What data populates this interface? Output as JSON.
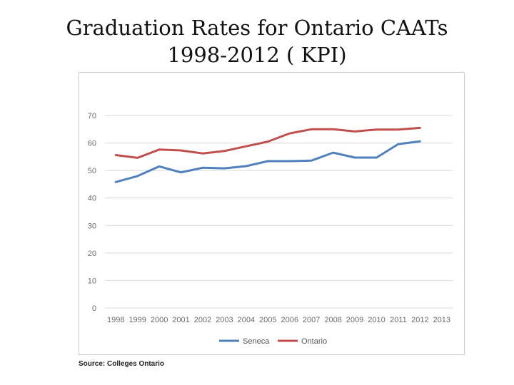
{
  "title": {
    "line1": "Graduation Rates for Ontario CAATs",
    "line2": "1998-2012 ( KPI)"
  },
  "source": "Source: Colleges Ontario",
  "colors": {
    "seneca": "#4f81bd",
    "ontario": "#c0504d",
    "grid": "#d9d9d9"
  },
  "chart_data": {
    "type": "line",
    "title": "Graduation Rates for Ontario CAATs 1998-2012 ( KPI)",
    "xlabel": "",
    "ylabel": "",
    "x": [
      "1998",
      "1999",
      "2000",
      "2001",
      "2002",
      "2003",
      "2004",
      "2005",
      "2006",
      "2007",
      "2008",
      "2009",
      "2010",
      "2011",
      "2012",
      "2013"
    ],
    "ylim": [
      0,
      70
    ],
    "yticks": [
      0,
      10,
      20,
      30,
      40,
      50,
      60,
      70
    ],
    "grid": true,
    "legend_position": "bottom",
    "series": [
      {
        "name": "Seneca",
        "values": [
          45.8,
          48.0,
          51.5,
          49.3,
          51.0,
          50.8,
          51.6,
          53.4,
          53.4,
          53.6,
          56.5,
          54.7,
          54.7,
          59.6,
          60.6,
          null
        ]
      },
      {
        "name": "Ontario",
        "values": [
          55.6,
          54.6,
          57.6,
          57.3,
          56.2,
          57.1,
          58.8,
          60.5,
          63.5,
          65.0,
          65.0,
          64.2,
          64.9,
          64.9,
          65.5,
          null
        ]
      }
    ]
  }
}
